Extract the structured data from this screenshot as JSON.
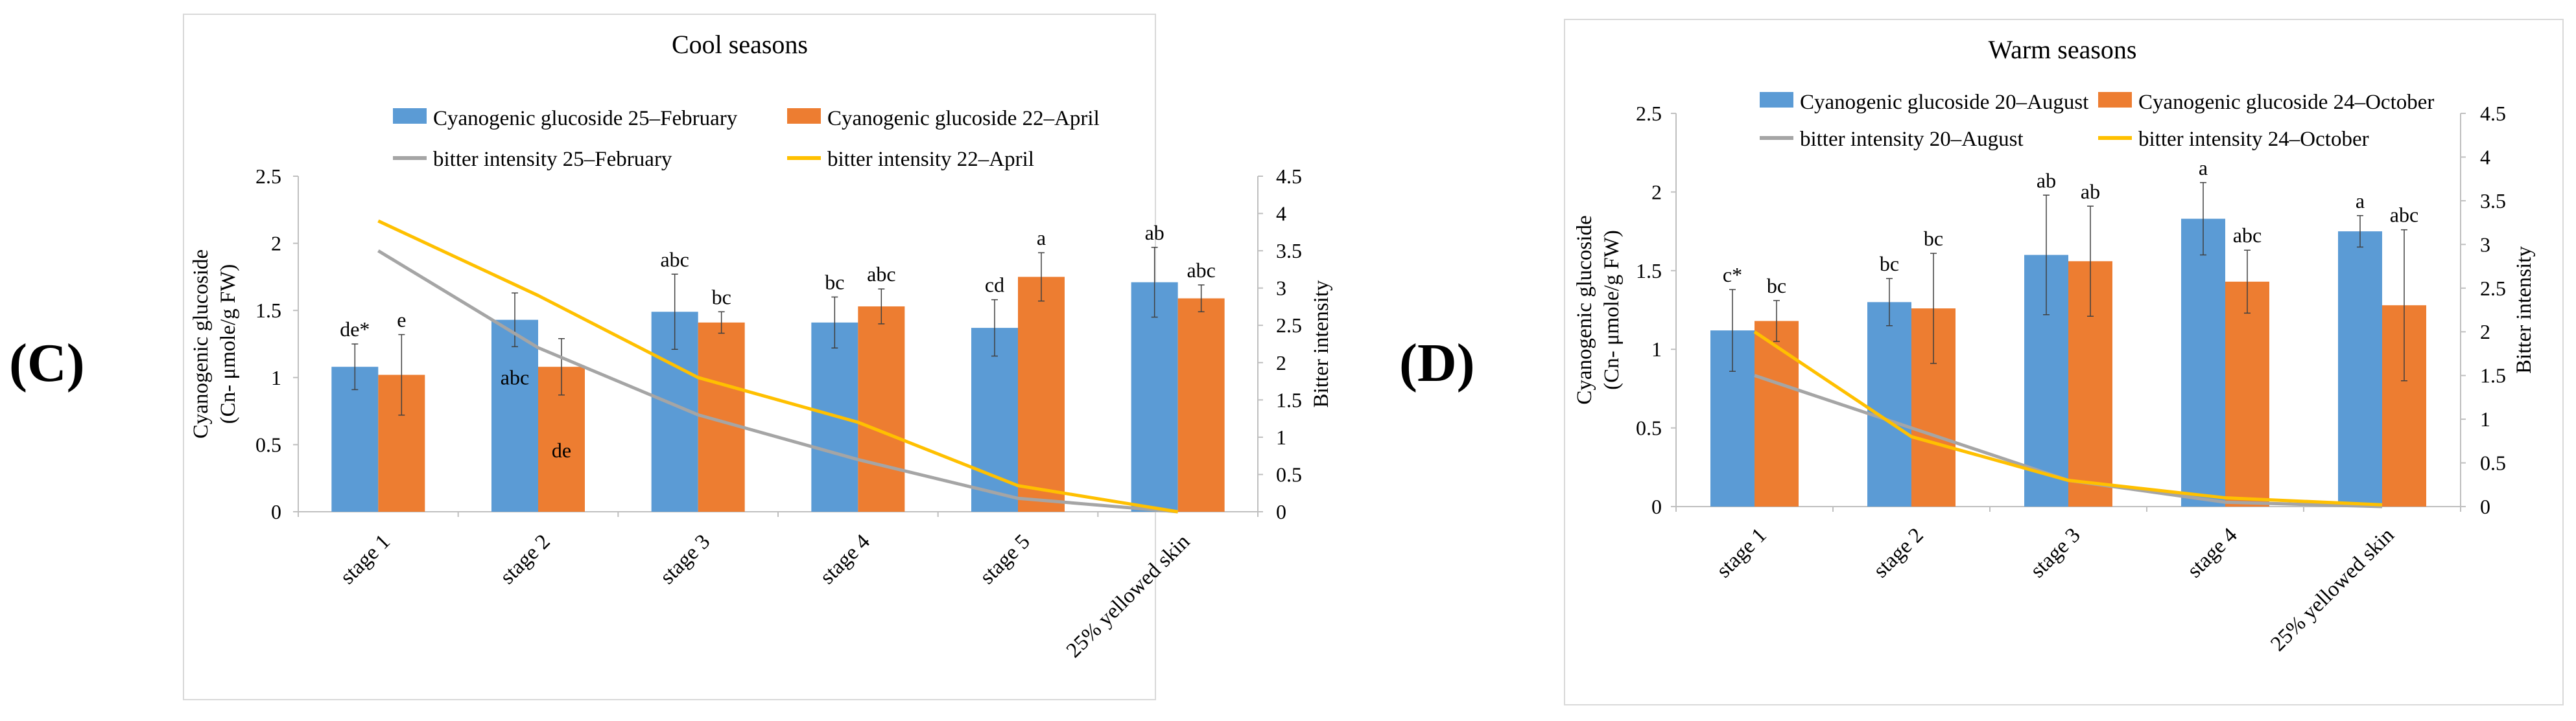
{
  "panels": {
    "c": {
      "label": "(C)"
    },
    "d": {
      "label": "(D)"
    }
  },
  "colors": {
    "bar1": "#5b9bd5",
    "bar2": "#ed7d31",
    "line1": "#a5a5a5",
    "line2": "#ffc000",
    "axis": "#bfbfbf",
    "frame": "#d9d9d9"
  },
  "chart_data": [
    {
      "type": "bar",
      "panel": "(C)",
      "title": "Cool seasons",
      "ylabel": "Cyanogenic glucoside",
      "ylabel2": "(Cn- μmole/g FW)",
      "y2label": "Bitter intensity",
      "ylim": [
        0,
        2.5
      ],
      "yticks": [
        "0",
        "0.5",
        "1",
        "1.5",
        "2",
        "2.5"
      ],
      "y2lim": [
        0,
        4.5
      ],
      "y2ticks": [
        "0",
        "0.5",
        "1",
        "1.5",
        "2",
        "2.5",
        "3",
        "3.5",
        "4",
        "4.5"
      ],
      "categories": [
        "stage 1",
        "stage 2",
        "stage 3",
        "stage 4",
        "stage 5",
        "25% yellowed skin"
      ],
      "series": [
        {
          "name": "Cyanogenic glucoside 25–February",
          "values": [
            1.08,
            1.43,
            1.49,
            1.41,
            1.37,
            1.71
          ],
          "errors": [
            0.17,
            0.2,
            0.28,
            0.19,
            0.21,
            0.26
          ],
          "labels": [
            "de*",
            "abc",
            "abc",
            "bc",
            "cd",
            "ab"
          ]
        },
        {
          "name": "Cyanogenic glucoside 22–April",
          "values": [
            1.02,
            1.08,
            1.41,
            1.53,
            1.75,
            1.59
          ],
          "errors": [
            0.3,
            0.21,
            0.08,
            0.13,
            0.18,
            0.1
          ],
          "labels": [
            "e",
            "de",
            "bc",
            "abc",
            "a",
            "abc"
          ]
        }
      ],
      "lines": [
        {
          "name": "bitter intensity 25–February",
          "values": [
            3.5,
            2.2,
            1.3,
            0.7,
            0.18,
            0.0
          ]
        },
        {
          "name": "bitter intensity 22–April",
          "values": [
            3.9,
            2.9,
            1.8,
            1.2,
            0.35,
            0.0
          ]
        }
      ]
    },
    {
      "type": "bar",
      "panel": "(D)",
      "title": "Warm seasons",
      "ylabel": "Cyanogenic glucoside",
      "ylabel2": "(Cn- μmole/g FW)",
      "y2label": "Bitter intensity",
      "ylim": [
        0,
        2.5
      ],
      "yticks": [
        "0",
        "0.5",
        "1",
        "1.5",
        "2",
        "2.5"
      ],
      "y2lim": [
        0,
        4.5
      ],
      "y2ticks": [
        "0",
        "0.5",
        "1",
        "1.5",
        "2",
        "2.5",
        "3",
        "3.5",
        "4",
        "4.5"
      ],
      "categories": [
        "stage 1",
        "stage 2",
        "stage 3",
        "stage 4",
        "25% yellowed skin"
      ],
      "series": [
        {
          "name": "Cyanogenic glucoside 20–August",
          "values": [
            1.12,
            1.3,
            1.6,
            1.83,
            1.75
          ],
          "errors": [
            0.26,
            0.15,
            0.38,
            0.23,
            0.1
          ],
          "labels": [
            "c*",
            "bc",
            "ab",
            "a",
            "a"
          ]
        },
        {
          "name": "Cyanogenic glucoside 24–October",
          "values": [
            1.18,
            1.26,
            1.56,
            1.43,
            1.28
          ],
          "errors": [
            0.13,
            0.35,
            0.35,
            0.2,
            0.48
          ],
          "labels": [
            "bc",
            "bc",
            "ab",
            "abc",
            "abc"
          ]
        }
      ],
      "lines": [
        {
          "name": "bitter intensity 20–August",
          "values": [
            1.5,
            0.9,
            0.3,
            0.05,
            0.0
          ]
        },
        {
          "name": "bitter intensity 24–October",
          "values": [
            2.0,
            0.8,
            0.3,
            0.1,
            0.02
          ]
        }
      ]
    }
  ]
}
